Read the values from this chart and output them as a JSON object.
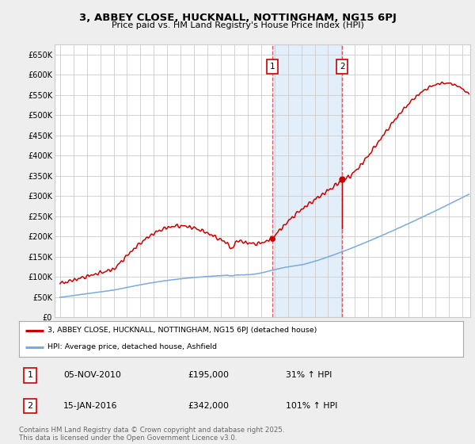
{
  "title": "3, ABBEY CLOSE, HUCKNALL, NOTTINGHAM, NG15 6PJ",
  "subtitle": "Price paid vs. HM Land Registry's House Price Index (HPI)",
  "bg_color": "#eeeeee",
  "plot_bg_color": "#ffffff",
  "y_ticks": [
    0,
    50000,
    100000,
    150000,
    200000,
    250000,
    300000,
    350000,
    400000,
    450000,
    500000,
    550000,
    600000,
    650000
  ],
  "y_tick_labels": [
    "£0",
    "£50K",
    "£100K",
    "£150K",
    "£200K",
    "£250K",
    "£300K",
    "£350K",
    "£400K",
    "£450K",
    "£500K",
    "£550K",
    "£600K",
    "£650K"
  ],
  "xlim_start": 1994.6,
  "xlim_end": 2025.6,
  "ylim_min": 0,
  "ylim_max": 675000,
  "transaction1_date": 2010.85,
  "transaction1_price": 195000,
  "transaction1_label": "1",
  "transaction2_date": 2016.05,
  "transaction2_price": 342000,
  "transaction2_label": "2",
  "sale_color": "#cc0000",
  "hpi_color": "#7aabdc",
  "hpi_shaded_start": 2010.85,
  "hpi_shaded_end": 2016.05,
  "legend_sale": "3, ABBEY CLOSE, HUCKNALL, NOTTINGHAM, NG15 6PJ (detached house)",
  "legend_hpi": "HPI: Average price, detached house, Ashfield",
  "annotation1_date": "05-NOV-2010",
  "annotation1_price": "£195,000",
  "annotation1_pct": "31% ↑ HPI",
  "annotation2_date": "15-JAN-2016",
  "annotation2_price": "£342,000",
  "annotation2_pct": "101% ↑ HPI",
  "footer": "Contains HM Land Registry data © Crown copyright and database right 2025.\nThis data is licensed under the Open Government Licence v3.0.",
  "grid_color": "#cccccc",
  "title_fontsize": 9.5,
  "subtitle_fontsize": 8.0
}
